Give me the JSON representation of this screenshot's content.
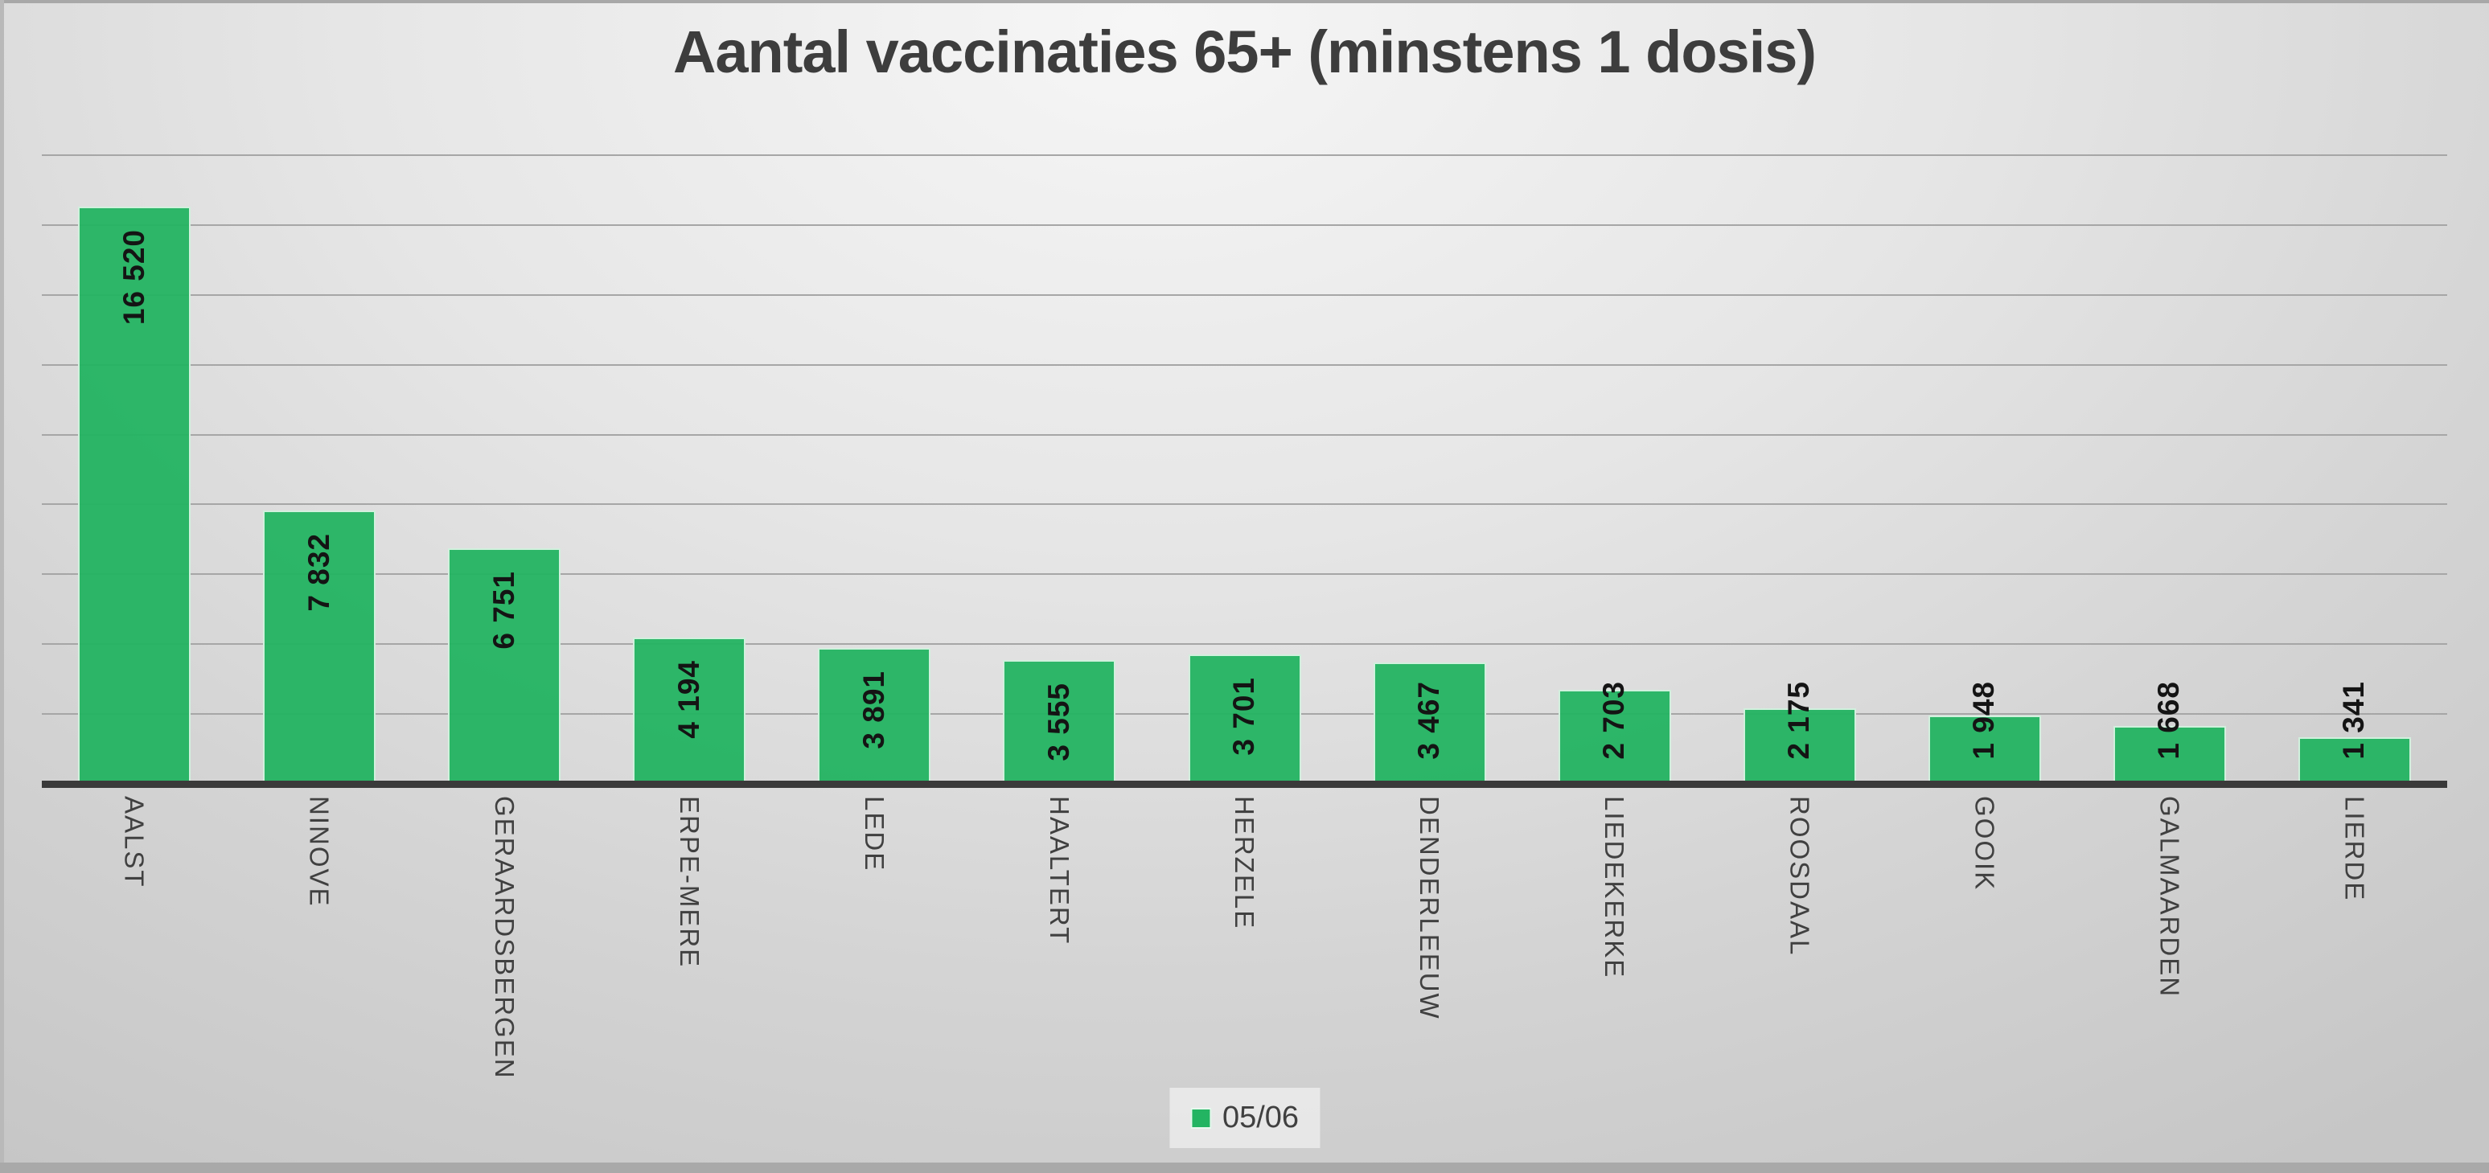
{
  "title": "Aantal vaccinaties 65+ (minstens 1 dosis)",
  "legend": {
    "label": "05/06"
  },
  "colors": {
    "bar": "#23b462",
    "bar_edge": "#eefaf2",
    "axis_line": "#3a3a3a",
    "gridline": "#a6a6a6",
    "value_label": "#141414",
    "category_label": "#404040",
    "title": "#3d3d3d"
  },
  "chart_data": {
    "type": "bar",
    "title": "Aantal vaccinaties 65+ (minstens 1 dosis)",
    "categories": [
      "AALST",
      "NINOVE",
      "GERAARDSBERGEN",
      "ERPE-MERE",
      "LEDE",
      "HAALTERT",
      "HERZELE",
      "DENDERLEEUW",
      "LIEDEKERKE",
      "ROOSDAAL",
      "GOOIK",
      "GALMAARDEN",
      "LIERDE"
    ],
    "series": [
      {
        "name": "05/06",
        "values": [
          16520,
          7832,
          6751,
          4194,
          3891,
          3555,
          3701,
          3467,
          2703,
          2175,
          1948,
          1668,
          1341
        ],
        "value_labels": [
          "16 520",
          "7 832",
          "6 751",
          "4 194",
          "3 891",
          "3 555",
          "3 701",
          "3 467",
          "2 703",
          "2 175",
          "1 948",
          "1 668",
          "1 341"
        ]
      }
    ],
    "xlabel": "",
    "ylabel": "",
    "ylim": [
      0,
      18000
    ],
    "gridline_step": 2000,
    "grid": true,
    "y_axis_tick_labels_visible": false,
    "legend_position": "bottom-center",
    "bar_label_rotation": "vertical-bottom-to-top",
    "category_label_rotation": "vertical-top-to-bottom"
  }
}
